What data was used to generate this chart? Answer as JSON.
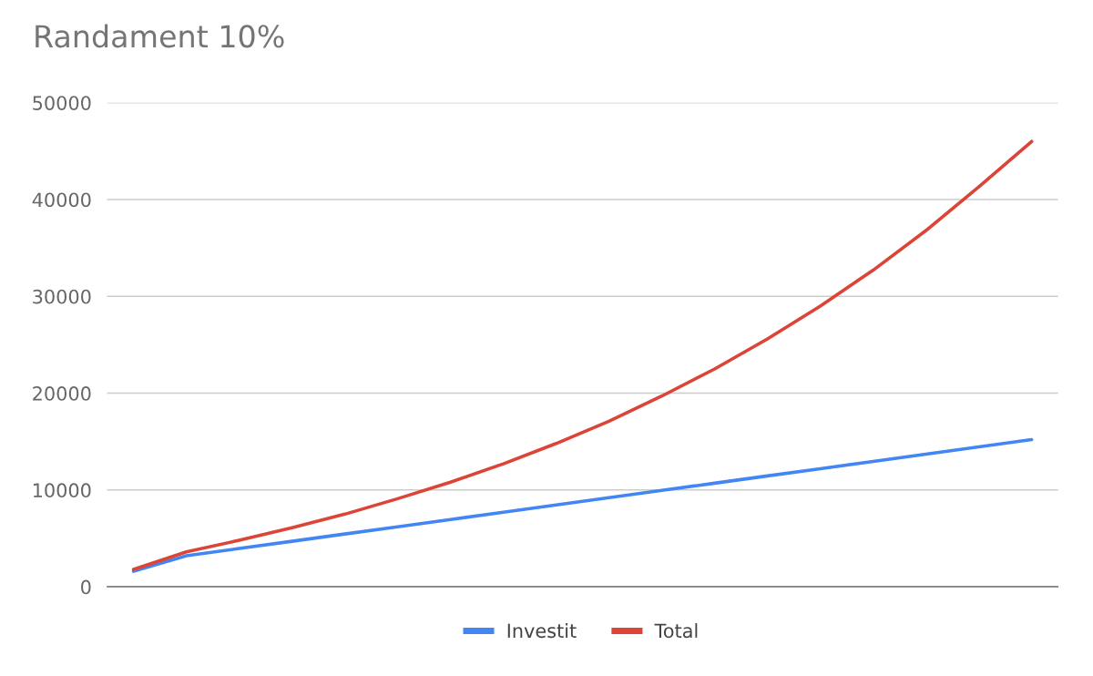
{
  "chart_data": {
    "type": "line",
    "title": "Randament 10%",
    "categories": [
      null,
      null,
      null,
      null,
      null,
      null,
      null,
      null,
      null,
      null,
      null,
      null,
      null,
      null,
      null,
      null,
      null,
      null
    ],
    "series": [
      {
        "name": "Investit",
        "color": "#4285f4",
        "values": [
          1600,
          3200,
          3950,
          4700,
          5450,
          6200,
          6950,
          7700,
          8450,
          9200,
          9950,
          10700,
          11450,
          12200,
          12950,
          13700,
          14450,
          15200
        ]
      },
      {
        "name": "Total",
        "color": "#db4437",
        "values": [
          1800,
          3600,
          4800,
          6100,
          7500,
          9100,
          10800,
          12700,
          14800,
          17100,
          19700,
          22500,
          25600,
          29000,
          32700,
          36800,
          41300,
          46000
        ]
      }
    ],
    "ylim": [
      0,
      50000
    ],
    "yticks": [
      0,
      10000,
      20000,
      30000,
      40000,
      50000
    ],
    "grid": "y",
    "legend": "bottom",
    "tick_labels": "y",
    "marker": "none",
    "line_style": "solid"
  }
}
